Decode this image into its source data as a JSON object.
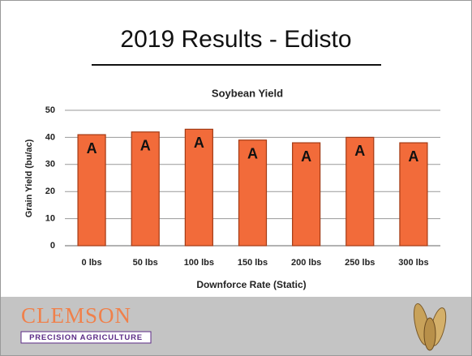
{
  "header": {
    "title": "2019 Results - Edisto"
  },
  "chart_data": {
    "type": "bar",
    "title": "Soybean Yield",
    "y_label": "Grain Yield (bu/ac)",
    "x_label": "Downforce Rate (Static)",
    "categories": [
      "0 lbs",
      "50 lbs",
      "100 lbs",
      "150 lbs",
      "200 lbs",
      "250 lbs",
      "300 lbs"
    ],
    "values": [
      41,
      42,
      43,
      39,
      38,
      40,
      38
    ],
    "letters": [
      "A",
      "A",
      "A",
      "A",
      "A",
      "A",
      "A"
    ],
    "color": "#f26b3a",
    "ylim": [
      0,
      50
    ],
    "yticks": [
      0,
      10,
      20,
      30,
      40,
      50
    ],
    "grid": true
  },
  "footer": {
    "logo": "CLEMSON",
    "logo_subtitle": "PRECISION AGRICULTURE"
  }
}
